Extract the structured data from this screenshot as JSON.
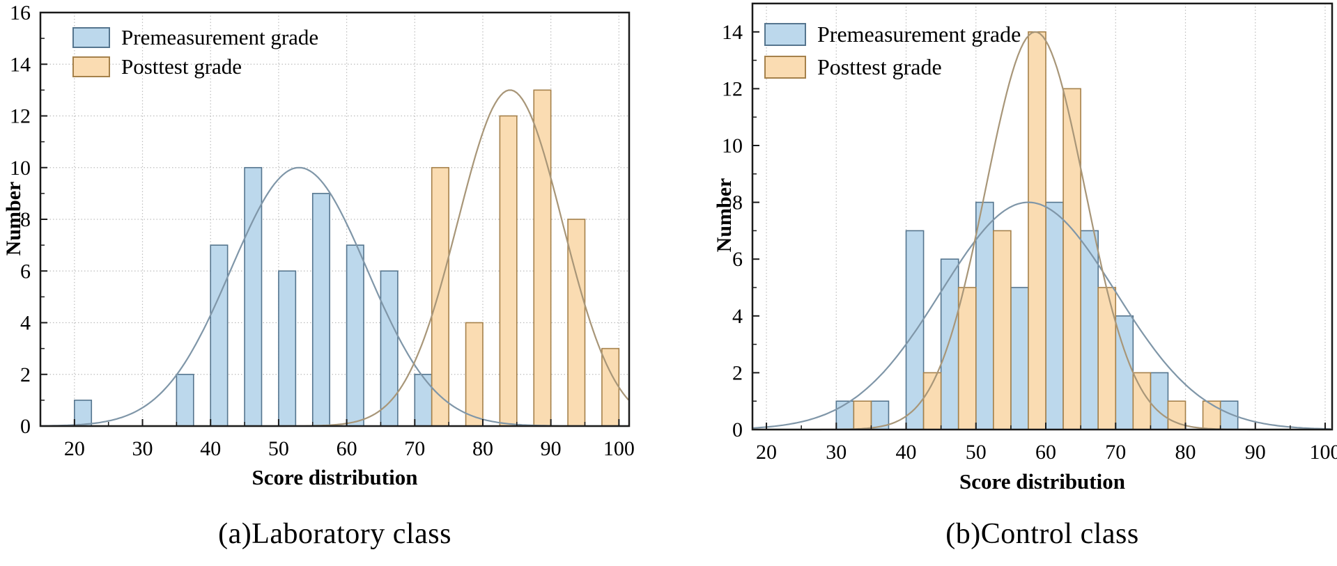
{
  "colors": {
    "pre_fill": "#bcd8ec",
    "pre_edge": "#55758e",
    "post_fill": "#fadcb2",
    "post_edge": "#a5814b",
    "pre_curve": "#7f96a8",
    "post_curve": "#a89678",
    "grid": "#bdbdbd",
    "axis": "#1a1a1a",
    "text": "#000000"
  },
  "chart_data": [
    {
      "name": "laboratory",
      "type": "bar",
      "title": "(a)Laboratory class",
      "xlabel": "Score distribution",
      "ylabel": "Number",
      "xlim": [
        15,
        101.5
      ],
      "ylim": [
        0,
        16
      ],
      "xticks": [
        20,
        30,
        40,
        50,
        60,
        70,
        80,
        90,
        100
      ],
      "yticks": [
        0,
        2,
        4,
        6,
        8,
        10,
        12,
        14,
        16
      ],
      "bar_width": 2.5,
      "grid_vertical": true,
      "grid_horizontal": true,
      "legend_position": "top-left",
      "series": [
        {
          "key": "pre",
          "name": "Premeasurement grade",
          "bins": [
            {
              "x": 20,
              "n": 1
            },
            {
              "x": 35,
              "n": 2
            },
            {
              "x": 40,
              "n": 7
            },
            {
              "x": 45,
              "n": 10
            },
            {
              "x": 50,
              "n": 6
            },
            {
              "x": 55,
              "n": 9
            },
            {
              "x": 60,
              "n": 7
            },
            {
              "x": 65,
              "n": 6
            },
            {
              "x": 70,
              "n": 2
            }
          ]
        },
        {
          "key": "post",
          "name": "Posttest grade",
          "bins": [
            {
              "x": 72.5,
              "n": 10
            },
            {
              "x": 77.5,
              "n": 4
            },
            {
              "x": 82.5,
              "n": 12
            },
            {
              "x": 87.5,
              "n": 13
            },
            {
              "x": 92.5,
              "n": 8
            },
            {
              "x": 97.5,
              "n": 3
            }
          ]
        }
      ],
      "curves": [
        {
          "series": "pre",
          "mean": 53,
          "sigma": 10,
          "amplitude": 10
        },
        {
          "series": "post",
          "mean": 84,
          "sigma": 7.7,
          "amplitude": 13
        }
      ]
    },
    {
      "name": "control",
      "type": "bar",
      "title": "(b)Control class",
      "xlabel": "Score distribution",
      "ylabel": "Number",
      "xlim": [
        18,
        101
      ],
      "ylim": [
        0,
        15
      ],
      "xticks": [
        20,
        30,
        40,
        50,
        60,
        70,
        80,
        90,
        100
      ],
      "yticks": [
        0,
        2,
        4,
        6,
        8,
        10,
        12,
        14
      ],
      "bar_width": 2.5,
      "grid_vertical": true,
      "grid_horizontal": false,
      "legend_position": "top-left",
      "series": [
        {
          "key": "pre",
          "name": "Premeasurement grade",
          "bins": [
            {
              "x": 30,
              "n": 1
            },
            {
              "x": 35,
              "n": 1
            },
            {
              "x": 40,
              "n": 7
            },
            {
              "x": 45,
              "n": 6
            },
            {
              "x": 50,
              "n": 8
            },
            {
              "x": 55,
              "n": 5
            },
            {
              "x": 60,
              "n": 8
            },
            {
              "x": 65,
              "n": 7
            },
            {
              "x": 70,
              "n": 4
            },
            {
              "x": 75,
              "n": 2
            },
            {
              "x": 85,
              "n": 1
            }
          ]
        },
        {
          "key": "post",
          "name": "Posttest grade",
          "bins": [
            {
              "x": 32.5,
              "n": 1
            },
            {
              "x": 42.5,
              "n": 2
            },
            {
              "x": 47.5,
              "n": 5
            },
            {
              "x": 52.5,
              "n": 7
            },
            {
              "x": 57.5,
              "n": 14
            },
            {
              "x": 62.5,
              "n": 12
            },
            {
              "x": 67.5,
              "n": 5
            },
            {
              "x": 72.5,
              "n": 2
            },
            {
              "x": 77.5,
              "n": 1
            },
            {
              "x": 82.5,
              "n": 1
            }
          ]
        }
      ],
      "curves": [
        {
          "series": "pre",
          "mean": 57.5,
          "sigma": 12.5,
          "amplitude": 8
        },
        {
          "series": "post",
          "mean": 58.5,
          "sigma": 7.1,
          "amplitude": 14
        }
      ]
    }
  ]
}
